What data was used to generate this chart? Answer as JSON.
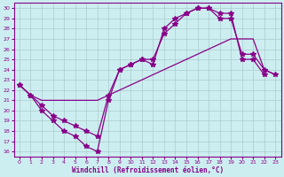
{
  "xlabel": "Windchill (Refroidissement éolien,°C)",
  "background_color": "#cdeef0",
  "grid_color": "#aacccc",
  "line_color": "#880088",
  "xlim": [
    -0.5,
    23.5
  ],
  "ylim": [
    15.5,
    30.5
  ],
  "xticks": [
    0,
    1,
    2,
    3,
    4,
    5,
    6,
    7,
    8,
    9,
    10,
    11,
    12,
    13,
    14,
    15,
    16,
    17,
    18,
    19,
    20,
    21,
    22,
    23
  ],
  "yticks": [
    16,
    17,
    18,
    19,
    20,
    21,
    22,
    23,
    24,
    25,
    26,
    27,
    28,
    29,
    30
  ],
  "line1_x": [
    0,
    1,
    2,
    3,
    4,
    5,
    6,
    7,
    8,
    9,
    10,
    11,
    12,
    13,
    14,
    15,
    16,
    17,
    18,
    19,
    20,
    21,
    22
  ],
  "line1_y": [
    22.5,
    21.5,
    20.0,
    19.0,
    18.0,
    17.5,
    16.5,
    16.0,
    21.0,
    24.0,
    24.5,
    25.0,
    24.5,
    28.0,
    29.0,
    29.5,
    30.0,
    30.0,
    29.5,
    29.5,
    25.0,
    25.0,
    23.5
  ],
  "line2_x": [
    0,
    1,
    2,
    3,
    4,
    5,
    6,
    7,
    8,
    9,
    10,
    11,
    12,
    13,
    14,
    15,
    16,
    17,
    18,
    19,
    20,
    21,
    22,
    23
  ],
  "line2_y": [
    22.5,
    21.5,
    20.5,
    19.5,
    19.0,
    18.5,
    18.0,
    17.5,
    21.5,
    24.0,
    24.5,
    25.0,
    25.0,
    27.5,
    28.5,
    29.5,
    30.0,
    30.0,
    29.0,
    29.0,
    25.5,
    25.5,
    24.0,
    23.5
  ],
  "line3_x": [
    0,
    1,
    2,
    3,
    4,
    5,
    6,
    7,
    8,
    9,
    10,
    11,
    12,
    13,
    14,
    15,
    16,
    17,
    18,
    19,
    20,
    21,
    22,
    23
  ],
  "line3_y": [
    22.5,
    21.5,
    21.0,
    21.0,
    21.0,
    21.0,
    21.0,
    21.0,
    21.5,
    22.0,
    22.5,
    23.0,
    23.5,
    24.0,
    24.5,
    25.0,
    25.5,
    26.0,
    26.5,
    27.0,
    27.0,
    27.0,
    24.0,
    23.5
  ]
}
